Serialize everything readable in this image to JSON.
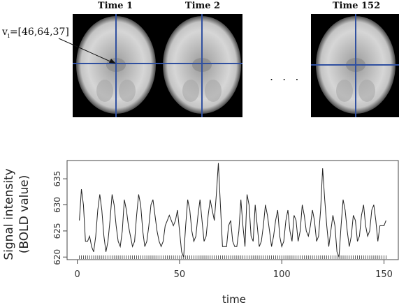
{
  "panels": {
    "time_labels": [
      "Time 1",
      "Time 2",
      "Time 152"
    ],
    "voxel_label": "v",
    "voxel_sub": "i",
    "voxel_coords": "=[46,64,37]",
    "ellipsis": ". . ."
  },
  "colors": {
    "crosshair": "#3050a0",
    "brain_bg": "#000000",
    "line": "#222222"
  },
  "chart_data": {
    "type": "line",
    "xlabel": "time",
    "ylabel": "Signal intensity (BOLD value)",
    "ylabel_lines": [
      "Signal intensity",
      "(BOLD value)"
    ],
    "xlim": [
      -5,
      157
    ],
    "ylim": [
      619.5,
      638.5
    ],
    "xticks": [
      0,
      50,
      100,
      150
    ],
    "yticks": [
      620,
      625,
      630,
      635
    ],
    "grid": false,
    "rug": true,
    "series": [
      {
        "values": [
          627,
          633,
          630,
          623,
          623,
          624,
          622,
          621,
          624,
          629,
          632,
          629,
          624,
          621,
          623,
          627,
          632,
          630,
          626,
          623,
          622,
          625,
          631,
          629,
          626,
          624,
          622,
          623,
          628,
          632,
          630,
          625,
          622,
          623,
          626,
          630,
          631,
          628,
          625,
          623,
          622,
          623,
          626,
          627,
          628,
          627,
          626,
          627,
          629,
          625,
          621,
          620,
          626,
          631,
          629,
          625,
          623,
          624,
          628,
          631,
          627,
          623,
          624,
          628,
          631,
          629,
          627,
          632,
          638,
          630,
          622,
          622,
          622,
          626,
          627,
          623,
          622,
          622,
          625,
          631,
          626,
          622,
          632,
          630,
          624,
          623,
          630,
          626,
          622,
          623,
          626,
          630,
          628,
          625,
          622,
          624,
          627,
          629,
          624,
          622,
          623,
          627,
          629,
          625,
          623,
          628,
          627,
          623,
          625,
          630,
          628,
          625,
          624,
          626,
          629,
          627,
          623,
          624,
          629,
          637,
          631,
          626,
          622,
          625,
          628,
          626,
          621,
          620,
          626,
          631,
          629,
          625,
          622,
          624,
          628,
          627,
          623,
          624,
          628,
          630,
          626,
          624,
          625,
          629,
          630,
          627,
          623,
          626,
          626,
          626,
          627
        ]
      }
    ]
  }
}
